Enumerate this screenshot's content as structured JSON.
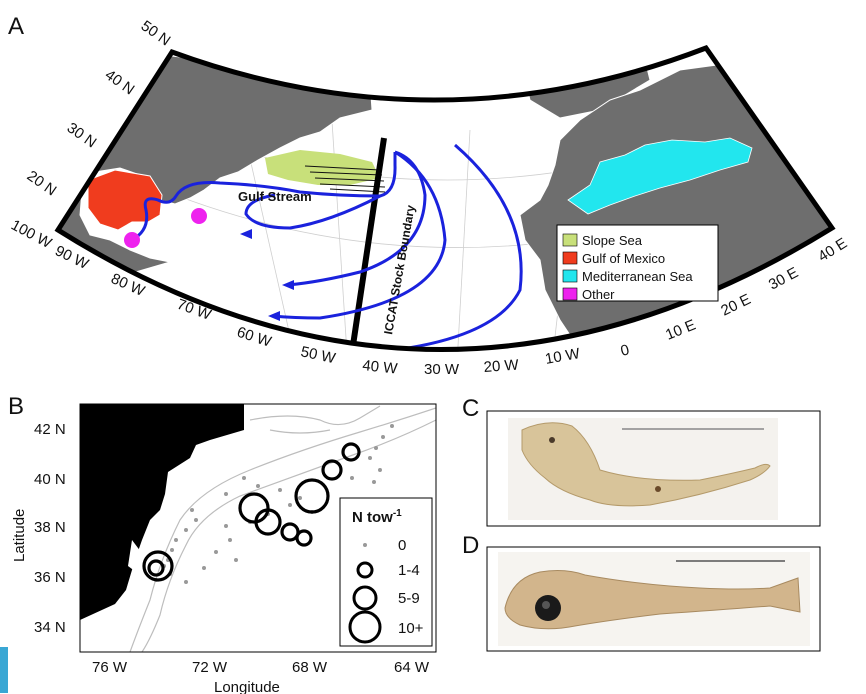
{
  "panels": {
    "a": "A",
    "b": "B",
    "c": "C",
    "d": "D"
  },
  "map_a": {
    "lat_labels": [
      "50 N",
      "40 N",
      "30 N",
      "20 N"
    ],
    "lon_labels": [
      "100 W",
      "90 W",
      "80 W",
      "70 W",
      "60 W",
      "50 W",
      "40 W",
      "30 W",
      "20 W",
      "10 W",
      "0",
      "10 E",
      "20 E",
      "30 E",
      "40 E"
    ],
    "gulf_stream_label": "Gulf Stream",
    "boundary_label": "ICCAT Stock Boundary",
    "legend": [
      {
        "label": "Slope Sea",
        "color": "#c8e07a"
      },
      {
        "label": "Gulf of Mexico",
        "color": "#f03c1e"
      },
      {
        "label": "Mediterranean Sea",
        "color": "#22e6ee"
      },
      {
        "label": "Other",
        "color": "#ee22ee"
      }
    ],
    "current_color": "#1a22dd",
    "land_color": "#6e6e6e"
  },
  "map_b": {
    "y_ticks": [
      "42 N",
      "40 N",
      "38 N",
      "36 N",
      "34 N"
    ],
    "x_ticks": [
      "76 W",
      "72 W",
      "68 W",
      "64 W"
    ],
    "ylabel": "Latitude",
    "xlabel": "Longitude",
    "legend_title": "N tow",
    "legend_title_sup": "-1",
    "legend_items": [
      "0",
      "1-4",
      "5-9",
      "10+"
    ]
  }
}
